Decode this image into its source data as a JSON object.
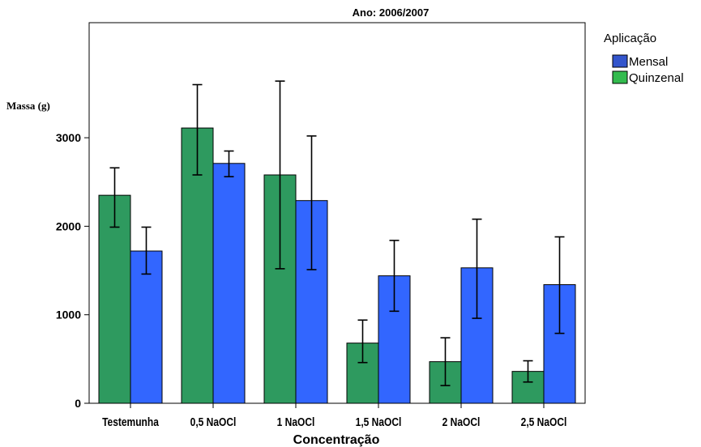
{
  "chart_data": {
    "type": "bar",
    "title": "Ano: 2006/2007",
    "xlabel": "Concentração",
    "ylabel": "Massa (g)",
    "categories": [
      "Testemunha",
      "0,5 NaOCl",
      "1 NaOCl",
      "1,5 NaOCl",
      "2 NaOCl",
      "2,5 NaOCl"
    ],
    "series": [
      {
        "name": "Quinzenal",
        "color": "#2e9a5f",
        "values": [
          2350,
          3110,
          2580,
          680,
          470,
          360
        ],
        "error_low": [
          1990,
          2580,
          1520,
          460,
          200,
          240
        ],
        "error_high": [
          2660,
          3600,
          3640,
          940,
          740,
          480
        ]
      },
      {
        "name": "Mensal",
        "color": "#3266ff",
        "values": [
          1720,
          2710,
          2290,
          1440,
          1530,
          1340
        ],
        "error_low": [
          1460,
          2560,
          1510,
          1040,
          960,
          790
        ],
        "error_high": [
          1990,
          2850,
          3020,
          1840,
          2080,
          1880
        ]
      }
    ],
    "y_ticks": [
      {
        "value": 0,
        "label": "0"
      },
      {
        "value": 1000,
        "label": "1000"
      },
      {
        "value": 2000,
        "label": "2000"
      },
      {
        "value": 3000,
        "label": "3000"
      }
    ],
    "ylim": [
      0,
      4300
    ],
    "legend": {
      "title": "Aplicação",
      "placement": "right",
      "order": [
        "Mensal",
        "Quinzenal"
      ]
    },
    "grid": false
  }
}
